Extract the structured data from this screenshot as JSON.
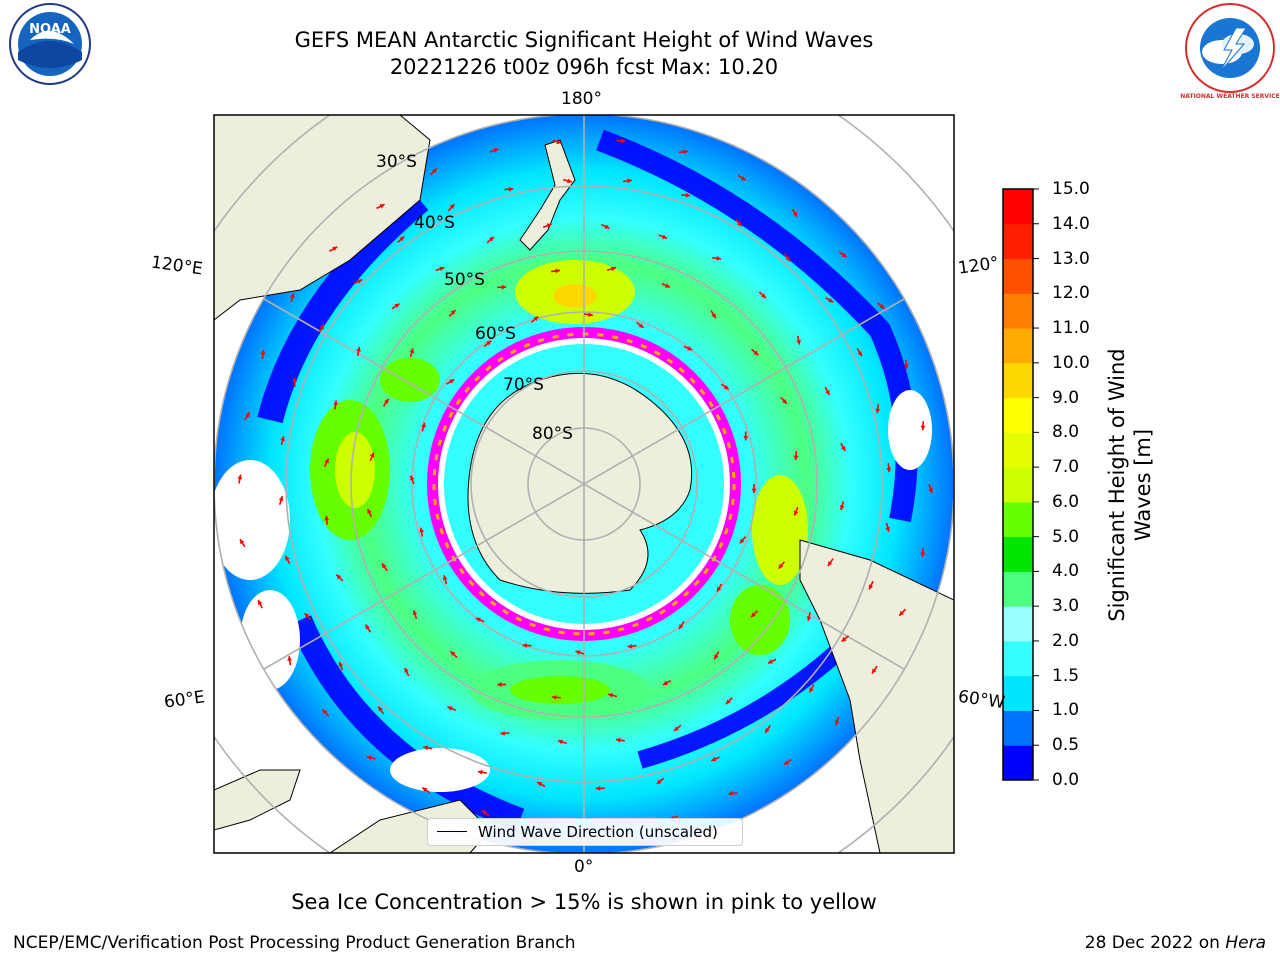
{
  "title_line1": "GEFS MEAN Antarctic Significant Height of Wind Waves",
  "title_line2": "20221226 t00z 096h fcst   Max: 10.20",
  "logos": {
    "left": {
      "name": "noaa-logo",
      "text": "NOAA"
    },
    "right": {
      "name": "national-weather-service-logo",
      "text": "NATIONAL WEATHER SERVICE"
    }
  },
  "map": {
    "projection": "south-polar-stereographic",
    "longitude_labels": {
      "top": "180°",
      "bottom": "0°",
      "upper_left": "120°E",
      "upper_right": "120°",
      "lower_left": "60°E",
      "lower_right": "60°W"
    },
    "latitude_labels": [
      "30°S",
      "40°S",
      "50°S",
      "60°S",
      "70°S",
      "80°S"
    ],
    "colors": {
      "land": "#eeeedd",
      "no_data": "#ffffff",
      "sea_ice": "#ff00ff",
      "arrows": "#ff0000"
    }
  },
  "legend": {
    "label": "Wind Wave Direction (unscaled)"
  },
  "colorbar": {
    "label": "Significant Height of Wind Waves [m]",
    "ticks": [
      "0.0",
      "0.5",
      "1.0",
      "1.5",
      "2.0",
      "3.0",
      "4.0",
      "5.0",
      "6.0",
      "7.0",
      "8.0",
      "9.0",
      "10.0",
      "11.0",
      "12.0",
      "13.0",
      "14.0",
      "15.0"
    ],
    "colors": [
      "#0000ff",
      "#0073ff",
      "#00e5ff",
      "#33ffff",
      "#99ffff",
      "#4dff80",
      "#00e600",
      "#66ff00",
      "#ccff00",
      "#e6ff00",
      "#ffff00",
      "#ffd700",
      "#ffaa00",
      "#ff8000",
      "#ff5000",
      "#ff2000",
      "#ff0000"
    ]
  },
  "note": "Sea Ice Concentration > 15% is shown in pink to yellow",
  "footer": {
    "left": "NCEP/EMC/Verification Post Processing Product Generation Branch",
    "right_date": "28 Dec 2022 on ",
    "right_host": "Hera"
  }
}
